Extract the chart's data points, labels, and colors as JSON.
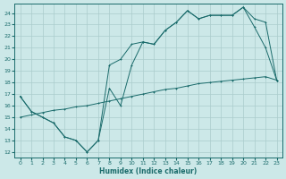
{
  "xlabel": "Humidex (Indice chaleur)",
  "background_color": "#cce8e8",
  "grid_color": "#aacccc",
  "line_color": "#1a6b6b",
  "xlim": [
    -0.5,
    23.5
  ],
  "ylim": [
    11.5,
    24.8
  ],
  "yticks": [
    12,
    13,
    14,
    15,
    16,
    17,
    18,
    19,
    20,
    21,
    22,
    23,
    24
  ],
  "xticks": [
    0,
    1,
    2,
    3,
    4,
    5,
    6,
    7,
    8,
    9,
    10,
    11,
    12,
    13,
    14,
    15,
    16,
    17,
    18,
    19,
    20,
    21,
    22,
    23
  ],
  "line1_x": [
    0,
    1,
    2,
    3,
    4,
    5,
    6,
    7,
    8,
    9,
    10,
    11,
    12,
    13,
    14,
    15,
    16,
    17,
    18,
    19,
    20,
    21,
    22,
    23
  ],
  "line1_y": [
    16.8,
    15.5,
    15.0,
    14.5,
    13.3,
    13.0,
    12.0,
    13.0,
    17.5,
    16.0,
    19.5,
    21.5,
    21.3,
    22.5,
    23.2,
    24.2,
    23.5,
    23.8,
    23.8,
    23.8,
    24.5,
    22.8,
    21.0,
    18.2
  ],
  "line2_x": [
    0,
    1,
    2,
    3,
    4,
    5,
    6,
    7,
    8,
    9,
    10,
    11,
    12,
    13,
    14,
    15,
    16,
    17,
    18,
    19,
    20,
    21,
    22,
    23
  ],
  "line2_y": [
    16.8,
    15.5,
    15.0,
    14.5,
    13.3,
    13.0,
    12.0,
    13.0,
    19.5,
    20.0,
    21.3,
    21.5,
    21.3,
    22.5,
    23.2,
    24.2,
    23.5,
    23.8,
    23.8,
    23.8,
    24.5,
    23.5,
    23.2,
    18.2
  ],
  "line3_x": [
    0,
    1,
    2,
    3,
    4,
    5,
    6,
    7,
    8,
    9,
    10,
    11,
    12,
    13,
    14,
    15,
    16,
    17,
    18,
    19,
    20,
    21,
    22,
    23
  ],
  "line3_y": [
    15.0,
    15.2,
    15.4,
    15.6,
    15.7,
    15.9,
    16.0,
    16.2,
    16.4,
    16.6,
    16.8,
    17.0,
    17.2,
    17.4,
    17.5,
    17.7,
    17.9,
    18.0,
    18.1,
    18.2,
    18.3,
    18.4,
    18.5,
    18.2
  ]
}
